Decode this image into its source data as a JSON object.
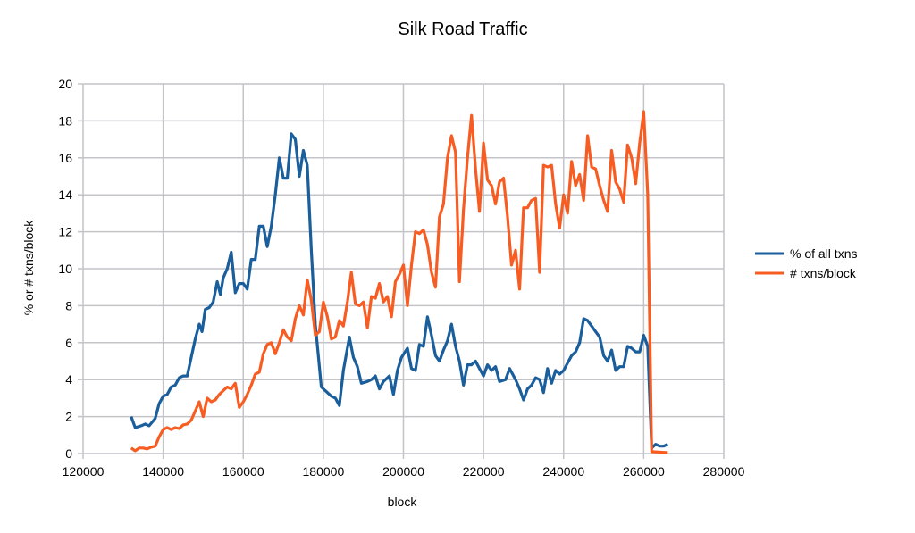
{
  "chart_data": {
    "type": "line",
    "title": "Silk Road Traffic",
    "xlabel": "block",
    "ylabel": "% or # txns/block",
    "xlim": [
      120000,
      280000
    ],
    "ylim": [
      0,
      20
    ],
    "xticks": [
      120000,
      140000,
      160000,
      180000,
      200000,
      220000,
      240000,
      260000,
      280000
    ],
    "yticks": [
      0,
      2,
      4,
      6,
      8,
      10,
      12,
      14,
      16,
      18,
      20
    ],
    "grid": true,
    "legend_position": "right",
    "series": [
      {
        "name": "% of all txns",
        "color": "#1a5e9c",
        "points": [
          [
            132000,
            2.0
          ],
          [
            133000,
            1.4
          ],
          [
            134500,
            1.5
          ],
          [
            135500,
            1.6
          ],
          [
            136500,
            1.5
          ],
          [
            138000,
            1.9
          ],
          [
            139000,
            2.7
          ],
          [
            140000,
            3.1
          ],
          [
            141000,
            3.2
          ],
          [
            142000,
            3.6
          ],
          [
            143000,
            3.7
          ],
          [
            144000,
            4.1
          ],
          [
            145000,
            4.2
          ],
          [
            146000,
            4.2
          ],
          [
            147000,
            5.2
          ],
          [
            148000,
            6.2
          ],
          [
            149000,
            7.0
          ],
          [
            149700,
            6.6
          ],
          [
            150500,
            7.8
          ],
          [
            151500,
            7.9
          ],
          [
            152500,
            8.2
          ],
          [
            153500,
            9.3
          ],
          [
            154300,
            8.6
          ],
          [
            155000,
            9.5
          ],
          [
            156000,
            10.0
          ],
          [
            157000,
            10.9
          ],
          [
            158000,
            8.7
          ],
          [
            159000,
            9.2
          ],
          [
            160000,
            9.2
          ],
          [
            161000,
            8.9
          ],
          [
            162000,
            10.5
          ],
          [
            163000,
            10.5
          ],
          [
            164000,
            12.3
          ],
          [
            165000,
            12.3
          ],
          [
            166000,
            11.2
          ],
          [
            167000,
            12.3
          ],
          [
            168000,
            14.0
          ],
          [
            169000,
            16.0
          ],
          [
            170000,
            14.9
          ],
          [
            171000,
            14.9
          ],
          [
            172000,
            17.3
          ],
          [
            173000,
            17.0
          ],
          [
            174000,
            15.0
          ],
          [
            175000,
            16.4
          ],
          [
            176000,
            15.6
          ],
          [
            177000,
            11.0
          ],
          [
            178000,
            7.0
          ],
          [
            179500,
            3.6
          ],
          [
            181000,
            3.3
          ],
          [
            182000,
            3.1
          ],
          [
            183000,
            3.0
          ],
          [
            184000,
            2.6
          ],
          [
            185000,
            4.5
          ],
          [
            186500,
            6.3
          ],
          [
            187500,
            5.2
          ],
          [
            188500,
            4.7
          ],
          [
            189500,
            3.8
          ],
          [
            191000,
            3.9
          ],
          [
            192000,
            4.0
          ],
          [
            193000,
            4.2
          ],
          [
            194000,
            3.5
          ],
          [
            195000,
            3.9
          ],
          [
            196500,
            4.2
          ],
          [
            197500,
            3.2
          ],
          [
            198500,
            4.5
          ],
          [
            199500,
            5.2
          ],
          [
            201000,
            5.7
          ],
          [
            202000,
            4.6
          ],
          [
            203000,
            4.5
          ],
          [
            204000,
            5.9
          ],
          [
            205000,
            5.8
          ],
          [
            206000,
            7.4
          ],
          [
            207000,
            6.4
          ],
          [
            208000,
            5.3
          ],
          [
            209000,
            5.0
          ],
          [
            210000,
            5.6
          ],
          [
            211000,
            6.1
          ],
          [
            212000,
            7.0
          ],
          [
            213000,
            5.8
          ],
          [
            214000,
            5.0
          ],
          [
            215000,
            3.7
          ],
          [
            216000,
            4.8
          ],
          [
            217000,
            4.8
          ],
          [
            218000,
            5.0
          ],
          [
            219000,
            4.6
          ],
          [
            220000,
            4.2
          ],
          [
            221000,
            4.8
          ],
          [
            222000,
            4.5
          ],
          [
            223000,
            4.7
          ],
          [
            224000,
            3.9
          ],
          [
            225500,
            4.0
          ],
          [
            226500,
            4.6
          ],
          [
            228000,
            4.0
          ],
          [
            229000,
            3.5
          ],
          [
            230000,
            2.9
          ],
          [
            231000,
            3.5
          ],
          [
            232000,
            3.7
          ],
          [
            233000,
            4.1
          ],
          [
            234000,
            4.0
          ],
          [
            235000,
            3.3
          ],
          [
            236000,
            4.6
          ],
          [
            237000,
            3.8
          ],
          [
            238000,
            4.5
          ],
          [
            239000,
            4.3
          ],
          [
            240000,
            4.5
          ],
          [
            241000,
            4.9
          ],
          [
            242000,
            5.3
          ],
          [
            243000,
            5.5
          ],
          [
            244000,
            6.0
          ],
          [
            245000,
            7.3
          ],
          [
            246000,
            7.2
          ],
          [
            247000,
            6.9
          ],
          [
            248000,
            6.6
          ],
          [
            249000,
            6.3
          ],
          [
            250000,
            5.3
          ],
          [
            251000,
            5.0
          ],
          [
            252000,
            5.6
          ],
          [
            253000,
            4.5
          ],
          [
            254000,
            4.7
          ],
          [
            255000,
            4.7
          ],
          [
            256000,
            5.8
          ],
          [
            257000,
            5.7
          ],
          [
            258000,
            5.5
          ],
          [
            259000,
            5.5
          ],
          [
            260000,
            6.4
          ],
          [
            261000,
            5.8
          ],
          [
            262000,
            0.3
          ],
          [
            263000,
            0.5
          ],
          [
            264000,
            0.4
          ],
          [
            265000,
            0.4
          ],
          [
            266000,
            0.5
          ]
        ]
      },
      {
        "name": "# txns/block",
        "color": "#f75d23",
        "points": [
          [
            132000,
            0.3
          ],
          [
            133000,
            0.15
          ],
          [
            134000,
            0.3
          ],
          [
            135000,
            0.3
          ],
          [
            136000,
            0.25
          ],
          [
            137000,
            0.35
          ],
          [
            138000,
            0.4
          ],
          [
            139000,
            0.9
          ],
          [
            140000,
            1.3
          ],
          [
            141000,
            1.4
          ],
          [
            142000,
            1.3
          ],
          [
            143000,
            1.4
          ],
          [
            144000,
            1.35
          ],
          [
            145000,
            1.55
          ],
          [
            146000,
            1.6
          ],
          [
            147000,
            1.8
          ],
          [
            148000,
            2.3
          ],
          [
            149000,
            2.8
          ],
          [
            150000,
            2.0
          ],
          [
            151000,
            3.0
          ],
          [
            152000,
            2.8
          ],
          [
            153000,
            2.9
          ],
          [
            154000,
            3.2
          ],
          [
            155000,
            3.4
          ],
          [
            156000,
            3.6
          ],
          [
            157000,
            3.5
          ],
          [
            158000,
            3.8
          ],
          [
            159000,
            2.5
          ],
          [
            160000,
            2.8
          ],
          [
            161000,
            3.2
          ],
          [
            162000,
            3.7
          ],
          [
            163000,
            4.3
          ],
          [
            164000,
            4.4
          ],
          [
            165000,
            5.4
          ],
          [
            166000,
            5.9
          ],
          [
            167000,
            6.0
          ],
          [
            168000,
            5.4
          ],
          [
            169000,
            6.0
          ],
          [
            170000,
            6.7
          ],
          [
            171000,
            6.3
          ],
          [
            172000,
            6.1
          ],
          [
            173000,
            7.3
          ],
          [
            174000,
            8.0
          ],
          [
            175000,
            7.5
          ],
          [
            176000,
            9.4
          ],
          [
            177000,
            8.3
          ],
          [
            178000,
            6.4
          ],
          [
            179000,
            6.6
          ],
          [
            180000,
            8.2
          ],
          [
            181000,
            7.4
          ],
          [
            182000,
            6.2
          ],
          [
            183000,
            6.3
          ],
          [
            184000,
            7.2
          ],
          [
            185000,
            6.9
          ],
          [
            186000,
            8.2
          ],
          [
            187000,
            9.8
          ],
          [
            188000,
            8.1
          ],
          [
            189000,
            8.0
          ],
          [
            190000,
            8.2
          ],
          [
            191000,
            6.8
          ],
          [
            192000,
            8.5
          ],
          [
            193000,
            8.4
          ],
          [
            194000,
            9.2
          ],
          [
            195000,
            8.2
          ],
          [
            196000,
            8.5
          ],
          [
            197000,
            7.4
          ],
          [
            198000,
            9.3
          ],
          [
            199000,
            9.7
          ],
          [
            200000,
            10.2
          ],
          [
            201000,
            8.0
          ],
          [
            202000,
            10.2
          ],
          [
            203000,
            12.0
          ],
          [
            204000,
            11.9
          ],
          [
            205000,
            12.1
          ],
          [
            206000,
            11.3
          ],
          [
            207000,
            9.8
          ],
          [
            208000,
            9.0
          ],
          [
            209000,
            12.8
          ],
          [
            210000,
            13.5
          ],
          [
            211000,
            16.0
          ],
          [
            212000,
            17.2
          ],
          [
            213000,
            16.3
          ],
          [
            214000,
            9.3
          ],
          [
            215000,
            13.2
          ],
          [
            216000,
            16.0
          ],
          [
            217000,
            18.3
          ],
          [
            218000,
            15.4
          ],
          [
            219000,
            13.1
          ],
          [
            220000,
            16.8
          ],
          [
            221000,
            14.8
          ],
          [
            222000,
            14.5
          ],
          [
            223000,
            13.5
          ],
          [
            224000,
            14.7
          ],
          [
            225000,
            14.9
          ],
          [
            226000,
            12.8
          ],
          [
            227000,
            10.2
          ],
          [
            228000,
            11.0
          ],
          [
            229000,
            8.9
          ],
          [
            230000,
            13.3
          ],
          [
            231000,
            13.3
          ],
          [
            232000,
            13.7
          ],
          [
            233000,
            13.8
          ],
          [
            234000,
            9.8
          ],
          [
            235000,
            15.6
          ],
          [
            236000,
            15.5
          ],
          [
            237000,
            15.6
          ],
          [
            238000,
            13.5
          ],
          [
            239000,
            12.2
          ],
          [
            240000,
            14.0
          ],
          [
            241000,
            13.0
          ],
          [
            242000,
            15.8
          ],
          [
            243000,
            14.5
          ],
          [
            244000,
            15.1
          ],
          [
            245000,
            13.7
          ],
          [
            246000,
            17.2
          ],
          [
            247000,
            15.5
          ],
          [
            248000,
            15.4
          ],
          [
            249000,
            14.5
          ],
          [
            250000,
            13.7
          ],
          [
            251000,
            13.1
          ],
          [
            252000,
            16.4
          ],
          [
            253000,
            14.7
          ],
          [
            254000,
            14.3
          ],
          [
            255000,
            13.6
          ],
          [
            256000,
            16.7
          ],
          [
            257000,
            16.0
          ],
          [
            258000,
            14.6
          ],
          [
            259000,
            16.8
          ],
          [
            260000,
            18.5
          ],
          [
            261000,
            14.0
          ],
          [
            262000,
            0.1
          ],
          [
            266000,
            0.05
          ]
        ]
      }
    ]
  }
}
